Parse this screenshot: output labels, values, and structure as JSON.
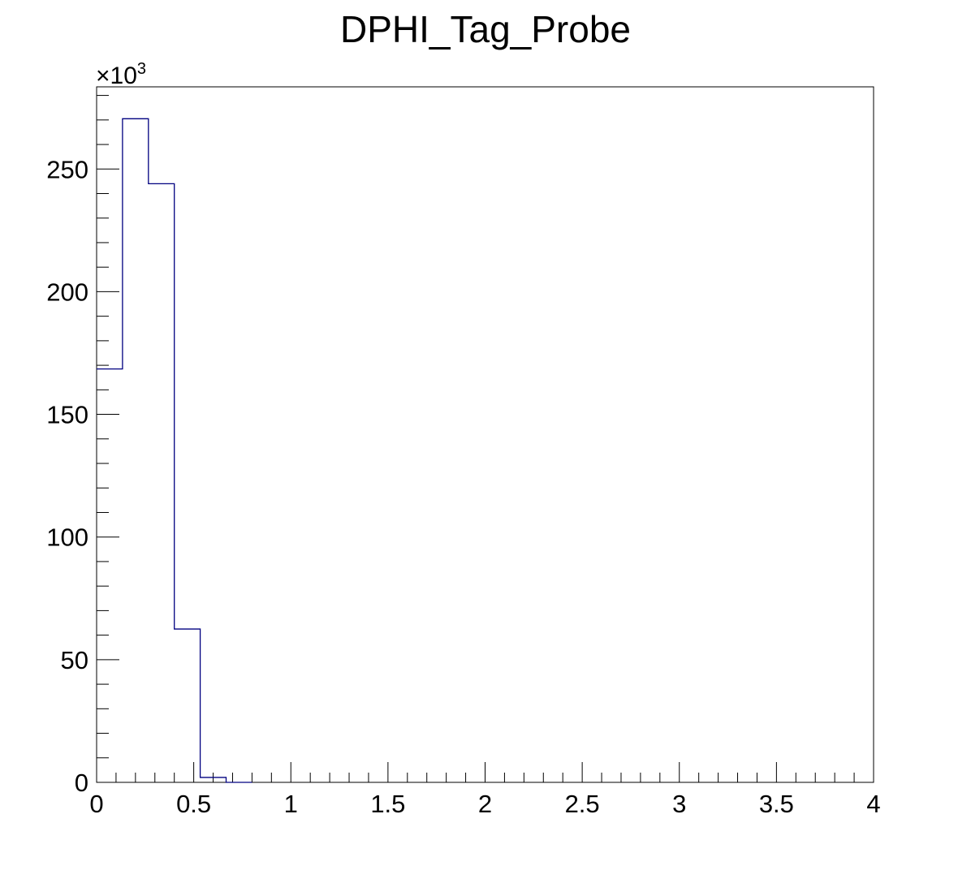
{
  "chart_data": {
    "type": "histogram",
    "title": "DPHI_Tag_Probe",
    "xlabel": "",
    "ylabel": "",
    "y_multiplier_label": "×10",
    "y_multiplier_exponent": "3",
    "xlim": [
      0,
      4
    ],
    "ylim": [
      0,
      283.5
    ],
    "bin_width": 0.1333,
    "bins": [
      {
        "x_low": 0.0,
        "x_high": 0.1333,
        "value": 168.5
      },
      {
        "x_low": 0.1333,
        "x_high": 0.2667,
        "value": 270.5
      },
      {
        "x_low": 0.2667,
        "x_high": 0.4,
        "value": 244.0
      },
      {
        "x_low": 0.4,
        "x_high": 0.5333,
        "value": 62.5
      },
      {
        "x_low": 0.5333,
        "x_high": 0.6667,
        "value": 2.0
      },
      {
        "x_low": 0.6667,
        "x_high": 0.8,
        "value": 0.0
      }
    ],
    "x_ticks": [
      {
        "value": 0,
        "label": "0"
      },
      {
        "value": 0.5,
        "label": "0.5"
      },
      {
        "value": 1,
        "label": "1"
      },
      {
        "value": 1.5,
        "label": "1.5"
      },
      {
        "value": 2,
        "label": "2"
      },
      {
        "value": 2.5,
        "label": "2.5"
      },
      {
        "value": 3,
        "label": "3"
      },
      {
        "value": 3.5,
        "label": "3.5"
      },
      {
        "value": 4,
        "label": "4"
      }
    ],
    "y_ticks": [
      {
        "value": 0,
        "label": "0"
      },
      {
        "value": 50,
        "label": "50"
      },
      {
        "value": 100,
        "label": "100"
      },
      {
        "value": 150,
        "label": "150"
      },
      {
        "value": 200,
        "label": "200"
      },
      {
        "value": 250,
        "label": "250"
      }
    ],
    "line_color": "#000080",
    "frame_color": "#000000",
    "grid": false,
    "legend": "none"
  }
}
